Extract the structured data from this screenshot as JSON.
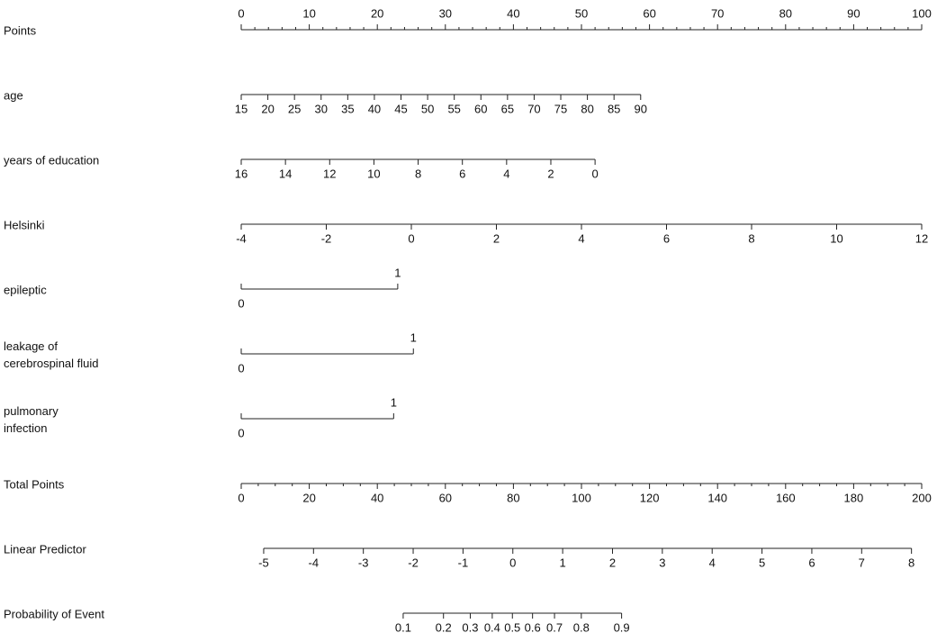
{
  "chart_data": {
    "type": "nomogram",
    "rows": [
      {
        "label": [
          "Points"
        ],
        "ticks": [
          0,
          10,
          20,
          30,
          40,
          50,
          60,
          70,
          80,
          90,
          100
        ],
        "points_span": [
          0,
          100
        ],
        "label_side": "above",
        "minor_step": 2
      },
      {
        "label": [
          "age"
        ],
        "ticks": [
          15,
          20,
          25,
          30,
          35,
          40,
          45,
          50,
          55,
          60,
          65,
          70,
          75,
          80,
          85,
          90
        ],
        "points_span": [
          0,
          58.7
        ],
        "label_side": "below"
      },
      {
        "label": [
          "years of education"
        ],
        "ticks": [
          16,
          14,
          12,
          10,
          8,
          6,
          4,
          2,
          0
        ],
        "points_span": [
          0,
          52
        ],
        "label_side": "below"
      },
      {
        "label": [
          "Helsinki"
        ],
        "ticks": [
          -4,
          -2,
          0,
          2,
          4,
          6,
          8,
          10,
          12
        ],
        "points_span": [
          0,
          100
        ],
        "label_side": "below"
      },
      {
        "label": [
          "epileptic"
        ],
        "ticks": [
          0,
          1
        ],
        "points_span": [
          0,
          23
        ],
        "label_side": "split"
      },
      {
        "label": [
          "leakage of",
          "cerebrospinal fluid"
        ],
        "ticks": [
          0,
          1
        ],
        "points_span": [
          0,
          25.3
        ],
        "label_side": "split"
      },
      {
        "label": [
          "pulmonary",
          "infection"
        ],
        "ticks": [
          0,
          1
        ],
        "points_span": [
          0,
          22.4
        ],
        "label_side": "split"
      },
      {
        "label": [
          "Total Points"
        ],
        "ticks": [
          0,
          20,
          40,
          60,
          80,
          100,
          120,
          140,
          160,
          180,
          200
        ],
        "points_span": [
          0,
          100
        ],
        "label_side": "below",
        "minor_step": 5
      },
      {
        "label": [
          "Linear Predictor"
        ],
        "ticks": [
          -5,
          -4,
          -3,
          -2,
          -1,
          0,
          1,
          2,
          3,
          4,
          5,
          6,
          7,
          8
        ],
        "points_span": [
          3.3,
          98.5
        ],
        "label_side": "below"
      },
      {
        "label": [
          "Probability of Event"
        ],
        "ticks": [
          0.1,
          0.2,
          0.3,
          0.4,
          0.5,
          0.6,
          0.7,
          0.8,
          0.9
        ],
        "points_span": [
          23.8,
          55.9
        ],
        "label_side": "below",
        "scale": "logit"
      }
    ]
  }
}
